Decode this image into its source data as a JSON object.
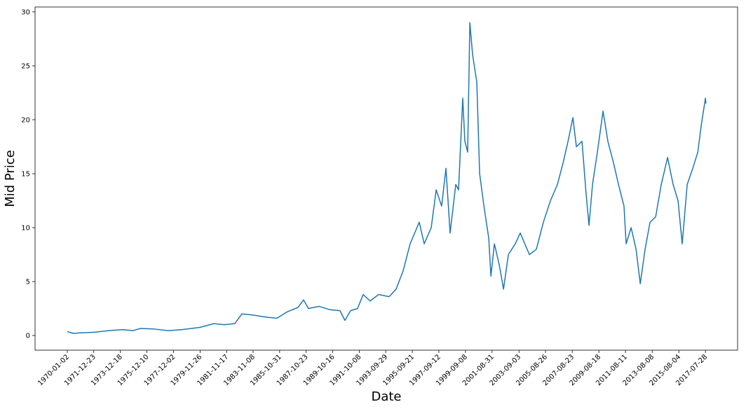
{
  "chart_data": {
    "type": "line",
    "x_label": "Date",
    "y_label": "Mid Price",
    "x": [
      "1970-01-02",
      "1970-06-20",
      "1970-12-28",
      "1972-01-15",
      "1973-02-01",
      "1974-02-15",
      "1974-11-27",
      "1975-06-10",
      "1976-06-25",
      "1977-07-12",
      "1978-07-28",
      "1979-11-15",
      "1980-12-05",
      "1981-09-15",
      "1982-06-28",
      "1983-01-08",
      "1983-10-20",
      "1984-11-06",
      "1985-08-18",
      "1986-05-30",
      "1987-03-14",
      "1987-08-14",
      "1987-12-25",
      "1988-10-08",
      "1989-07-20",
      "1990-05-01",
      "1990-09-12",
      "1991-02-12",
      "1991-08-22",
      "1992-01-22",
      "1992-07-30",
      "1993-03-18",
      "1993-12-28",
      "1994-07-08",
      "1995-01-15",
      "1995-07-24",
      "1996-03-28",
      "1996-08-10",
      "1997-02-17",
      "1997-07-02",
      "1997-11-28",
      "1998-03-25",
      "1998-07-16",
      "1998-12-17",
      "1999-03-03",
      "1999-06-25",
      "1999-08-22",
      "1999-11-06",
      "2000-01-05",
      "2000-03-20",
      "2000-07-12",
      "2000-09-27",
      "2001-01-22",
      "2001-06-03",
      "2001-07-31",
      "2001-11-03",
      "2002-03-18",
      "2002-07-10",
      "2002-11-18",
      "2003-05-26",
      "2003-10-08",
      "2004-06-13",
      "2004-12-20",
      "2005-06-28",
      "2006-01-08",
      "2006-07-16",
      "2006-12-17",
      "2007-05-01",
      "2007-09-10",
      "2007-12-14",
      "2008-05-15",
      "2008-09-07",
      "2008-11-22",
      "2009-02-25",
      "2009-07-08",
      "2009-12-09",
      "2010-04-20",
      "2010-09-20",
      "2011-02-02",
      "2011-07-02",
      "2011-08-30",
      "2012-01-12",
      "2012-05-26",
      "2012-09-17",
      "2013-01-27",
      "2013-06-10",
      "2013-11-10",
      "2014-04-12",
      "2014-10-01",
      "2015-03-01",
      "2015-07-13",
      "2015-11-03",
      "2016-03-18",
      "2016-08-18",
      "2017-01-01",
      "2017-04-05",
      "2017-07-28",
      "2017-08-10"
    ],
    "series": [
      {
        "name": "Mid Price",
        "color": "#1f77b4",
        "values": [
          0.35,
          0.2,
          0.25,
          0.3,
          0.45,
          0.55,
          0.45,
          0.65,
          0.6,
          0.45,
          0.55,
          0.75,
          1.1,
          1.0,
          1.1,
          2.0,
          1.9,
          1.7,
          1.6,
          2.2,
          2.6,
          3.3,
          2.5,
          2.7,
          2.4,
          2.3,
          1.4,
          2.3,
          2.5,
          3.8,
          3.2,
          3.8,
          3.6,
          4.3,
          6.0,
          8.5,
          10.5,
          8.5,
          10.0,
          13.5,
          12.0,
          15.5,
          9.5,
          14.0,
          13.5,
          22.0,
          18.0,
          17.0,
          29.0,
          26.0,
          23.5,
          15.0,
          12.0,
          9.0,
          5.5,
          8.5,
          6.5,
          4.3,
          7.5,
          8.5,
          9.5,
          7.5,
          8.0,
          10.5,
          12.5,
          14.0,
          16.0,
          18.0,
          20.2,
          17.5,
          18.0,
          13.0,
          10.2,
          14.0,
          17.0,
          20.8,
          18.0,
          16.0,
          14.0,
          12.0,
          8.5,
          10.0,
          8.0,
          4.8,
          8.0,
          10.5,
          11.0,
          14.0,
          16.5,
          14.0,
          12.5,
          8.5,
          14.0,
          15.5,
          17.0,
          19.5,
          22.0,
          21.5
        ]
      }
    ],
    "xlim": [
      "1967-08-08",
      "2019-12-20"
    ],
    "xticks": [
      "1970-01-02",
      "1971-12-23",
      "1973-12-18",
      "1975-12-10",
      "1977-12-02",
      "1979-11-26",
      "1981-11-17",
      "1983-11-08",
      "1985-10-31",
      "1987-10-23",
      "1989-10-16",
      "1991-10-08",
      "1993-09-29",
      "1995-09-21",
      "1997-09-12",
      "1999-09-08",
      "2001-08-31",
      "2003-09-03",
      "2005-08-26",
      "2007-08-23",
      "2009-08-18",
      "2011-08-11",
      "2013-08-08",
      "2015-08-04",
      "2017-07-28"
    ],
    "ylim": [
      -1.36,
      30.45
    ],
    "yticks": [
      0,
      5,
      10,
      15,
      20,
      25,
      30
    ],
    "grid": false
  }
}
